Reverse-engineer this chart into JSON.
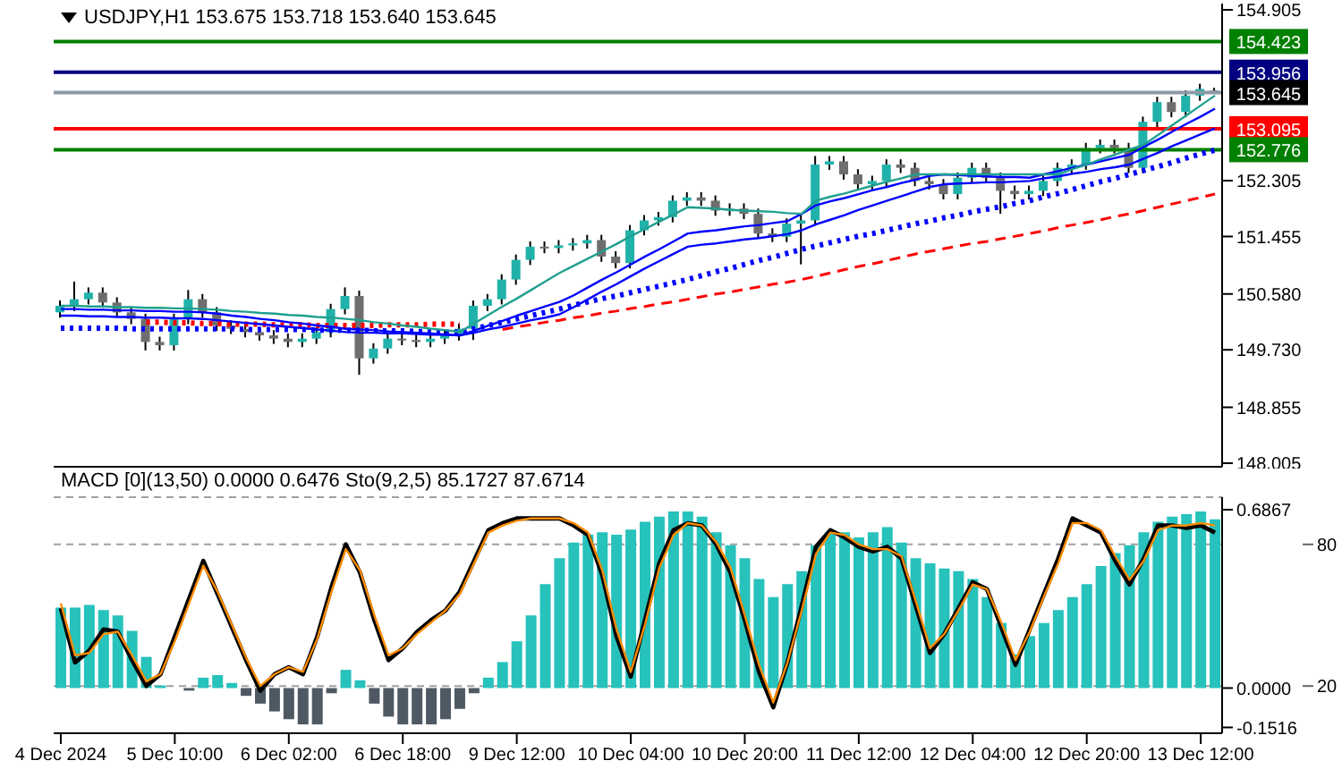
{
  "chart_data": [
    {
      "type": "candlestick",
      "title": "USDJPY,H1 153.675 153.718 153.640 153.645",
      "categories": [
        null,
        null,
        null,
        null,
        null,
        null,
        null,
        null,
        null,
        null,
        null,
        null,
        null,
        null,
        null,
        null,
        null,
        null,
        null,
        null,
        null,
        null,
        null,
        null,
        null,
        null,
        null,
        null,
        null,
        null,
        null,
        null,
        null,
        null,
        null,
        null,
        null,
        null,
        null,
        null,
        null,
        null,
        null,
        null,
        null,
        null,
        null,
        null,
        null,
        null,
        null,
        null,
        null,
        null,
        null,
        null,
        null,
        null,
        null,
        null,
        null,
        null,
        null,
        null,
        null,
        null,
        null,
        null,
        null,
        null,
        null,
        null,
        null,
        null,
        null,
        null,
        null,
        null,
        null,
        null,
        null,
        null
      ],
      "ohlc": [
        [
          150.3,
          150.48,
          150.22,
          150.4
        ],
        [
          150.4,
          150.77,
          150.32,
          150.5
        ],
        [
          150.5,
          150.68,
          150.42,
          150.6
        ],
        [
          150.6,
          150.68,
          150.37,
          150.45
        ],
        [
          150.45,
          150.53,
          150.22,
          150.3
        ],
        [
          150.3,
          150.38,
          150.12,
          150.2
        ],
        [
          150.2,
          150.28,
          149.72,
          149.85
        ],
        [
          149.85,
          149.93,
          149.72,
          149.8
        ],
        [
          149.8,
          150.28,
          149.72,
          150.2
        ],
        [
          150.2,
          150.64,
          150.12,
          150.5
        ],
        [
          150.5,
          150.58,
          150.22,
          150.3
        ],
        [
          150.3,
          150.38,
          150.02,
          150.1
        ],
        [
          150.1,
          150.18,
          149.97,
          150.05
        ],
        [
          150.05,
          150.13,
          149.92,
          150.0
        ],
        [
          150.0,
          150.08,
          149.87,
          149.95
        ],
        [
          149.95,
          150.03,
          149.82,
          149.9
        ],
        [
          149.9,
          149.98,
          149.77,
          149.85
        ],
        [
          149.85,
          149.98,
          149.77,
          149.9
        ],
        [
          149.9,
          150.08,
          149.82,
          150.0
        ],
        [
          150.0,
          150.43,
          149.92,
          150.35
        ],
        [
          150.35,
          150.68,
          150.27,
          150.55
        ],
        [
          150.55,
          150.63,
          149.35,
          149.6
        ],
        [
          149.6,
          149.83,
          149.52,
          149.75
        ],
        [
          149.75,
          149.98,
          149.67,
          149.9
        ],
        [
          149.9,
          149.98,
          149.8,
          149.88
        ],
        [
          149.88,
          149.96,
          149.77,
          149.85
        ],
        [
          149.85,
          149.98,
          149.77,
          149.9
        ],
        [
          149.9,
          150.03,
          149.82,
          149.95
        ],
        [
          149.95,
          150.13,
          149.87,
          150.05
        ],
        [
          150.05,
          150.48,
          149.88,
          150.4
        ],
        [
          150.4,
          150.58,
          150.32,
          150.5
        ],
        [
          150.5,
          150.88,
          150.42,
          150.8
        ],
        [
          150.8,
          151.18,
          150.72,
          151.1
        ],
        [
          151.1,
          151.38,
          151.02,
          151.3
        ],
        [
          151.3,
          151.38,
          151.2,
          151.28
        ],
        [
          151.28,
          151.4,
          151.2,
          151.32
        ],
        [
          151.32,
          151.43,
          151.24,
          151.35
        ],
        [
          151.35,
          151.48,
          151.27,
          151.4
        ],
        [
          151.4,
          151.48,
          151.07,
          151.15
        ],
        [
          151.15,
          151.23,
          150.97,
          151.05
        ],
        [
          151.05,
          151.63,
          150.97,
          151.55
        ],
        [
          151.55,
          151.78,
          151.47,
          151.7
        ],
        [
          151.7,
          151.83,
          151.62,
          151.75
        ],
        [
          151.75,
          152.08,
          151.67,
          152.0
        ],
        [
          152.0,
          152.13,
          151.92,
          152.05
        ],
        [
          152.05,
          152.13,
          151.92,
          152.0
        ],
        [
          152.0,
          152.08,
          151.77,
          151.85
        ],
        [
          151.85,
          151.96,
          151.77,
          151.88
        ],
        [
          151.88,
          151.96,
          151.72,
          151.8
        ],
        [
          151.8,
          151.88,
          151.42,
          151.5
        ],
        [
          151.5,
          151.58,
          151.37,
          151.45
        ],
        [
          151.45,
          151.73,
          151.37,
          151.65
        ],
        [
          151.65,
          151.78,
          151.03,
          151.7
        ],
        [
          151.7,
          152.68,
          151.62,
          152.55
        ],
        [
          152.55,
          152.68,
          152.47,
          152.6
        ],
        [
          152.6,
          152.68,
          152.32,
          152.4
        ],
        [
          152.4,
          152.48,
          152.17,
          152.25
        ],
        [
          152.25,
          152.38,
          152.17,
          152.3
        ],
        [
          152.3,
          152.63,
          152.22,
          152.55
        ],
        [
          152.55,
          152.63,
          152.42,
          152.5
        ],
        [
          152.5,
          152.58,
          152.22,
          152.3
        ],
        [
          152.3,
          152.38,
          152.17,
          152.25
        ],
        [
          152.25,
          152.33,
          152.02,
          152.1
        ],
        [
          152.1,
          152.43,
          152.02,
          152.35
        ],
        [
          152.35,
          152.58,
          152.27,
          152.5
        ],
        [
          152.5,
          152.58,
          152.27,
          152.35
        ],
        [
          152.35,
          152.43,
          151.8,
          152.15
        ],
        [
          152.15,
          152.23,
          152.02,
          152.1
        ],
        [
          152.1,
          152.23,
          152.02,
          152.15
        ],
        [
          152.15,
          152.38,
          152.07,
          152.3
        ],
        [
          152.3,
          152.58,
          152.22,
          152.5
        ],
        [
          152.5,
          152.63,
          152.42,
          152.55
        ],
        [
          152.55,
          152.88,
          152.47,
          152.8
        ],
        [
          152.8,
          152.93,
          152.72,
          152.85
        ],
        [
          152.85,
          152.93,
          152.72,
          152.8
        ],
        [
          152.8,
          152.88,
          152.42,
          152.5
        ],
        [
          152.5,
          153.28,
          152.42,
          153.2
        ],
        [
          153.2,
          153.58,
          153.12,
          153.5
        ],
        [
          153.5,
          153.58,
          153.27,
          153.35
        ],
        [
          153.35,
          153.68,
          153.27,
          153.6
        ],
        [
          153.6,
          153.78,
          153.52,
          153.7
        ],
        [
          153.675,
          153.718,
          153.64,
          153.645
        ]
      ],
      "colors": [
        "#20b2aa",
        "#20b2aa",
        "#20b2aa",
        "#6e6e6e",
        "#6e6e6e",
        "#6e6e6e",
        "#6e6e6e",
        "#6e6e6e",
        "#20b2aa",
        "#20b2aa",
        "#6e6e6e",
        "#6e6e6e",
        "#6e6e6e",
        "#6e6e6e",
        "#6e6e6e",
        "#6e6e6e",
        "#6e6e6e",
        "#20b2aa",
        "#20b2aa",
        "#20b2aa",
        "#20b2aa",
        "#6e6e6e",
        "#20b2aa",
        "#20b2aa",
        "#6e6e6e",
        "#6e6e6e",
        "#20b2aa",
        "#20b2aa",
        "#20b2aa",
        "#20b2aa",
        "#20b2aa",
        "#20b2aa",
        "#20b2aa",
        "#20b2aa",
        "#6e6e6e",
        "#20b2aa",
        "#20b2aa",
        "#20b2aa",
        "#6e6e6e",
        "#6e6e6e",
        "#20b2aa",
        "#20b2aa",
        "#20b2aa",
        "#20b2aa",
        "#20b2aa",
        "#6e6e6e",
        "#6e6e6e",
        "#20b2aa",
        "#6e6e6e",
        "#6e6e6e",
        "#6e6e6e",
        "#20b2aa",
        "#20b2aa",
        "#20b2aa",
        "#20b2aa",
        "#6e6e6e",
        "#6e6e6e",
        "#20b2aa",
        "#20b2aa",
        "#6e6e6e",
        "#6e6e6e",
        "#6e6e6e",
        "#6e6e6e",
        "#20b2aa",
        "#20b2aa",
        "#6e6e6e",
        "#6e6e6e",
        "#6e6e6e",
        "#20b2aa",
        "#20b2aa",
        "#20b2aa",
        "#20b2aa",
        "#20b2aa",
        "#20b2aa",
        "#6e6e6e",
        "#6e6e6e",
        "#20b2aa",
        "#20b2aa",
        "#6e6e6e",
        "#20b2aa",
        "#20b2aa",
        "#6e6e6e"
      ],
      "series": [
        {
          "type": "line",
          "color": "#0000ff",
          "line_style": "dotted",
          "values": [
            150.06,
            150.06,
            150.06,
            150.06,
            150.06,
            150.05,
            150.05,
            150.05,
            150.05,
            150.05,
            150.05,
            150.05,
            150.05,
            150.04,
            150.04,
            150.04,
            150.04,
            150.04,
            150.03,
            150.03,
            150.03,
            150.03,
            150.02,
            150.02,
            150.02,
            150.01,
            150.01,
            150.0,
            150.0,
            150.05,
            150.1,
            150.15,
            150.2,
            150.25,
            150.3,
            150.35,
            150.41,
            150.46,
            150.51,
            150.55,
            150.6,
            150.65,
            150.7,
            150.75,
            150.8,
            150.86,
            150.92,
            150.97,
            151.03,
            151.09,
            151.14,
            151.2,
            151.26,
            151.31,
            151.36,
            151.41,
            151.46,
            151.5,
            151.55,
            151.6,
            151.65,
            151.69,
            151.74,
            151.78,
            151.83,
            151.87,
            151.91,
            151.96,
            152.0,
            152.06,
            152.11,
            152.17,
            152.23,
            152.29,
            152.34,
            152.4,
            152.46,
            152.52,
            152.58,
            152.65,
            152.71,
            152.77
          ]
        },
        {
          "type": "line",
          "color": "#ff0000",
          "line_style": "dashed",
          "values": [
            null,
            null,
            null,
            null,
            null,
            null,
            null,
            null,
            null,
            null,
            null,
            null,
            null,
            null,
            null,
            null,
            null,
            null,
            null,
            null,
            null,
            null,
            null,
            null,
            null,
            null,
            null,
            null,
            null,
            null,
            null,
            150.04,
            150.08,
            150.11,
            150.15,
            150.18,
            150.22,
            150.25,
            150.29,
            150.32,
            150.36,
            150.39,
            150.43,
            150.46,
            150.5,
            150.54,
            150.58,
            150.61,
            150.65,
            150.69,
            150.73,
            150.76,
            150.8,
            150.85,
            150.9,
            150.95,
            151.0,
            151.04,
            151.09,
            151.14,
            151.19,
            151.23,
            151.27,
            151.31,
            151.35,
            151.38,
            151.42,
            151.46,
            151.5,
            151.54,
            151.59,
            151.63,
            151.67,
            151.71,
            151.76,
            151.8,
            151.85,
            151.9,
            151.95,
            152.0,
            152.05,
            152.1
          ]
        },
        {
          "type": "line",
          "color": "#ff0000",
          "line_style": "dotted",
          "values": [
            null,
            null,
            null,
            null,
            null,
            null,
            150.15,
            150.15,
            150.14,
            150.14,
            150.13,
            150.13,
            150.12,
            150.12,
            150.12,
            150.11,
            150.11,
            150.11,
            150.1,
            150.1,
            150.1,
            150.1,
            150.1,
            150.11,
            150.11,
            150.11,
            150.12,
            150.12,
            150.12,
            null,
            null,
            null,
            null,
            null,
            null,
            null,
            null,
            null,
            null,
            null,
            null,
            null,
            null,
            null,
            null,
            null,
            null,
            null,
            null,
            null,
            null,
            null,
            null,
            null,
            null,
            null,
            null,
            null,
            null,
            null,
            null,
            null,
            null,
            null,
            null,
            null,
            null,
            null,
            null,
            null,
            null,
            null,
            null,
            null,
            null,
            null,
            null,
            null,
            null,
            null,
            null,
            null
          ]
        },
        {
          "type": "line",
          "color": "#0000ff",
          "line_style": "solid",
          "values": [
            150.35,
            150.35,
            150.34,
            150.34,
            150.33,
            150.33,
            150.32,
            150.32,
            150.31,
            150.31,
            150.3,
            150.28,
            150.25,
            150.23,
            150.2,
            150.18,
            150.15,
            150.13,
            150.1,
            150.08,
            150.05,
            150.04,
            150.03,
            150.01,
            150.0,
            149.99,
            149.98,
            149.96,
            149.95,
            150.02,
            150.1,
            150.17,
            150.25,
            150.32,
            150.39,
            150.46,
            150.56,
            150.68,
            150.8,
            150.91,
            151.03,
            151.15,
            151.26,
            151.38,
            151.5,
            151.53,
            151.55,
            151.58,
            151.61,
            151.63,
            151.66,
            151.69,
            151.8,
            151.93,
            151.99,
            152.04,
            152.1,
            152.16,
            152.21,
            152.27,
            152.32,
            152.38,
            152.4,
            152.39,
            152.38,
            152.37,
            152.36,
            152.36,
            152.35,
            152.4,
            152.45,
            152.5,
            152.55,
            152.6,
            152.65,
            152.7,
            152.82,
            152.93,
            153.05,
            153.17,
            153.28,
            153.4
          ]
        },
        {
          "type": "line",
          "color": "#0000ff",
          "line_style": "solid",
          "values": [
            150.25,
            150.25,
            150.24,
            150.24,
            150.23,
            150.23,
            150.22,
            150.22,
            150.21,
            150.21,
            150.2,
            150.18,
            150.16,
            150.14,
            150.12,
            150.1,
            150.08,
            150.06,
            150.04,
            150.02,
            150.0,
            149.99,
            149.99,
            149.98,
            149.98,
            149.97,
            149.96,
            149.96,
            149.95,
            149.99,
            150.04,
            150.08,
            150.13,
            150.18,
            150.22,
            150.27,
            150.38,
            150.5,
            150.62,
            150.73,
            150.85,
            150.97,
            151.08,
            151.19,
            151.3,
            151.33,
            151.35,
            151.38,
            151.41,
            151.43,
            151.46,
            151.49,
            151.55,
            151.64,
            151.71,
            151.78,
            151.86,
            151.93,
            152.0,
            152.07,
            152.14,
            152.21,
            152.25,
            152.26,
            152.27,
            152.28,
            152.28,
            152.29,
            152.3,
            152.34,
            152.37,
            152.41,
            152.44,
            152.48,
            152.51,
            152.55,
            152.64,
            152.73,
            152.83,
            152.92,
            153.01,
            153.1
          ]
        },
        {
          "type": "line",
          "color": "#20a090",
          "line_style": "solid",
          "values": [
            150.4,
            150.4,
            150.39,
            150.39,
            150.38,
            150.38,
            150.37,
            150.37,
            150.36,
            150.36,
            150.35,
            150.34,
            150.32,
            150.31,
            150.29,
            150.28,
            150.26,
            150.25,
            150.23,
            150.22,
            150.2,
            150.18,
            150.15,
            150.13,
            150.1,
            150.08,
            150.05,
            150.03,
            150.0,
            150.13,
            150.26,
            150.39,
            150.51,
            150.64,
            150.77,
            150.9,
            151.01,
            151.12,
            151.23,
            151.34,
            151.46,
            151.57,
            151.68,
            151.79,
            151.9,
            151.89,
            151.88,
            151.86,
            151.85,
            151.84,
            151.83,
            151.81,
            151.8,
            152.0,
            152.06,
            152.11,
            152.17,
            152.23,
            152.29,
            152.34,
            152.4,
            152.4,
            152.4,
            152.4,
            152.4,
            152.4,
            152.4,
            152.4,
            152.4,
            152.4,
            152.4,
            152.48,
            152.55,
            152.63,
            152.7,
            152.78,
            152.85,
            153.0,
            153.15,
            153.3,
            153.45,
            153.6
          ]
        }
      ],
      "ylim": [
        147.95,
        155.0
      ],
      "yticks": [
        {
          "value": 154.905,
          "label": "154.905"
        },
        {
          "value": 152.305,
          "label": "152.305"
        },
        {
          "value": 151.455,
          "label": "151.455"
        },
        {
          "value": 150.58,
          "label": "150.580"
        },
        {
          "value": 149.73,
          "label": "149.730"
        },
        {
          "value": 148.855,
          "label": "148.855"
        },
        {
          "value": 148.005,
          "label": "148.005"
        }
      ],
      "tick_labels": "y",
      "ref_lines": [
        {
          "axis": "y",
          "value": 154.423,
          "label": "154.423",
          "color": "#008000"
        },
        {
          "axis": "y",
          "value": 153.956,
          "label": "153.956",
          "color": "#000080"
        },
        {
          "axis": "y",
          "value": 153.645,
          "label": "153.645",
          "color": "#8c99a6"
        },
        {
          "axis": "y",
          "value": 153.095,
          "label": "153.095",
          "color": "#ff0000"
        },
        {
          "axis": "y",
          "value": 152.776,
          "label": "152.776",
          "color": "#008000"
        }
      ]
    },
    {
      "type": "bar",
      "title": "MACD [0](13,50) 0.0000 0.6476 Sto(9,2,5) 85.1727 87.6714",
      "categories": [
        "4 Dec 2024",
        null,
        null,
        null,
        null,
        null,
        null,
        null,
        "5 Dec 10:00",
        null,
        null,
        null,
        null,
        null,
        null,
        null,
        "6 Dec 02:00",
        null,
        null,
        null,
        null,
        null,
        null,
        null,
        "6 Dec 18:00",
        null,
        null,
        null,
        null,
        null,
        null,
        null,
        "9 Dec 12:00",
        null,
        null,
        null,
        null,
        null,
        null,
        null,
        "10 Dec 04:00",
        null,
        null,
        null,
        null,
        null,
        null,
        null,
        "10 Dec 20:00",
        null,
        null,
        null,
        null,
        null,
        null,
        null,
        "11 Dec 12:00",
        null,
        null,
        null,
        null,
        null,
        null,
        null,
        "12 Dec 04:00",
        null,
        null,
        null,
        null,
        null,
        null,
        null,
        "12 Dec 20:00",
        null,
        null,
        null,
        null,
        null,
        null,
        null,
        "13 Dec 12:00",
        null
      ],
      "ylim": [
        -0.174,
        0.735
      ],
      "yticks": [
        0.6867,
        {
          "value": 0,
          "label": "0.0000"
        },
        -0.1516
      ],
      "y2lim": [
        0,
        100
      ],
      "y2ticks": [
        80,
        20
      ],
      "series": [
        {
          "type": "bar",
          "values": [
            0.31,
            0.31,
            0.32,
            0.3,
            0.28,
            0.22,
            0.12,
            0.01,
            0.0,
            -0.01,
            0.04,
            0.05,
            0.02,
            -0.03,
            -0.06,
            -0.09,
            -0.12,
            -0.14,
            -0.14,
            -0.02,
            0.07,
            0.03,
            -0.06,
            -0.11,
            -0.14,
            -0.14,
            -0.14,
            -0.12,
            -0.08,
            -0.02,
            0.04,
            0.1,
            0.18,
            0.28,
            0.4,
            0.5,
            0.56,
            0.59,
            0.6,
            0.59,
            0.61,
            0.64,
            0.66,
            0.68,
            0.68,
            0.66,
            0.6,
            0.55,
            0.5,
            0.42,
            0.35,
            0.4,
            0.45,
            0.55,
            0.6,
            0.6,
            0.58,
            0.6,
            0.62,
            0.56,
            0.5,
            0.48,
            0.46,
            0.45,
            0.42,
            0.35,
            0.25,
            0.13,
            0.2,
            0.25,
            0.3,
            0.35,
            0.4,
            0.47,
            0.52,
            0.55,
            0.6,
            0.64,
            0.66,
            0.67,
            0.68,
            0.65
          ],
          "colors": [
            "#26c2bb",
            "#26c2bb",
            "#26c2bb",
            "#26c2bb",
            "#26c2bb",
            "#26c2bb",
            "#26c2bb",
            "#26c2bb",
            "#26c2bb",
            "#4f5964",
            "#26c2bb",
            "#26c2bb",
            "#26c2bb",
            "#4f5964",
            "#4f5964",
            "#4f5964",
            "#4f5964",
            "#4f5964",
            "#4f5964",
            "#4f5964",
            "#26c2bb",
            "#26c2bb",
            "#4f5964",
            "#4f5964",
            "#4f5964",
            "#4f5964",
            "#4f5964",
            "#4f5964",
            "#4f5964",
            "#4f5964",
            "#26c2bb",
            "#26c2bb",
            "#26c2bb",
            "#26c2bb",
            "#26c2bb",
            "#26c2bb",
            "#26c2bb",
            "#26c2bb",
            "#26c2bb",
            "#26c2bb",
            "#26c2bb",
            "#26c2bb",
            "#26c2bb",
            "#26c2bb",
            "#26c2bb",
            "#26c2bb",
            "#26c2bb",
            "#26c2bb",
            "#26c2bb",
            "#26c2bb",
            "#26c2bb",
            "#26c2bb",
            "#26c2bb",
            "#26c2bb",
            "#26c2bb",
            "#26c2bb",
            "#26c2bb",
            "#26c2bb",
            "#26c2bb",
            "#26c2bb",
            "#26c2bb",
            "#26c2bb",
            "#26c2bb",
            "#26c2bb",
            "#26c2bb",
            "#26c2bb",
            "#26c2bb",
            "#26c2bb",
            "#26c2bb",
            "#26c2bb",
            "#26c2bb",
            "#26c2bb",
            "#26c2bb",
            "#26c2bb",
            "#26c2bb",
            "#26c2bb",
            "#26c2bb",
            "#26c2bb",
            "#26c2bb",
            "#26c2bb",
            "#26c2bb",
            "#26c2bb"
          ]
        },
        {
          "type": "line",
          "color": "#000000",
          "axis": "y2",
          "values": [
            53,
            30,
            35,
            44,
            43,
            31,
            20,
            25,
            41,
            57,
            73,
            59,
            45,
            31,
            18,
            25,
            28,
            25,
            41,
            62,
            80,
            68,
            48,
            31,
            36,
            43,
            48,
            52,
            60,
            73,
            86,
            89,
            91,
            91,
            91,
            91,
            88,
            84,
            67,
            41,
            24,
            48,
            72,
            86,
            89,
            88,
            80,
            68,
            48,
            26,
            11,
            30,
            54,
            79,
            86,
            83,
            79,
            77,
            79,
            74,
            54,
            34,
            42,
            53,
            64,
            61,
            45,
            29,
            44,
            59,
            74,
            91,
            88,
            85,
            73,
            63,
            74,
            88,
            88,
            87,
            88,
            85
          ]
        },
        {
          "type": "line",
          "color": "#ff8c00",
          "axis": "y2",
          "values": [
            55,
            33,
            34,
            42,
            43,
            33,
            22,
            25,
            39,
            55,
            71,
            60,
            46,
            32,
            20,
            25,
            28,
            26,
            40,
            60,
            78,
            69,
            50,
            33,
            36,
            42,
            47,
            52,
            59,
            72,
            85,
            88,
            90,
            91,
            91,
            91,
            89,
            85,
            69,
            44,
            26,
            46,
            70,
            84,
            89,
            88,
            81,
            70,
            50,
            29,
            13,
            30,
            52,
            76,
            85,
            84,
            80,
            78,
            78,
            75,
            56,
            36,
            42,
            52,
            63,
            61,
            47,
            31,
            43,
            58,
            72,
            89,
            89,
            86,
            75,
            65,
            73,
            86,
            88,
            88,
            89,
            88
          ]
        }
      ],
      "grid": "y"
    }
  ]
}
